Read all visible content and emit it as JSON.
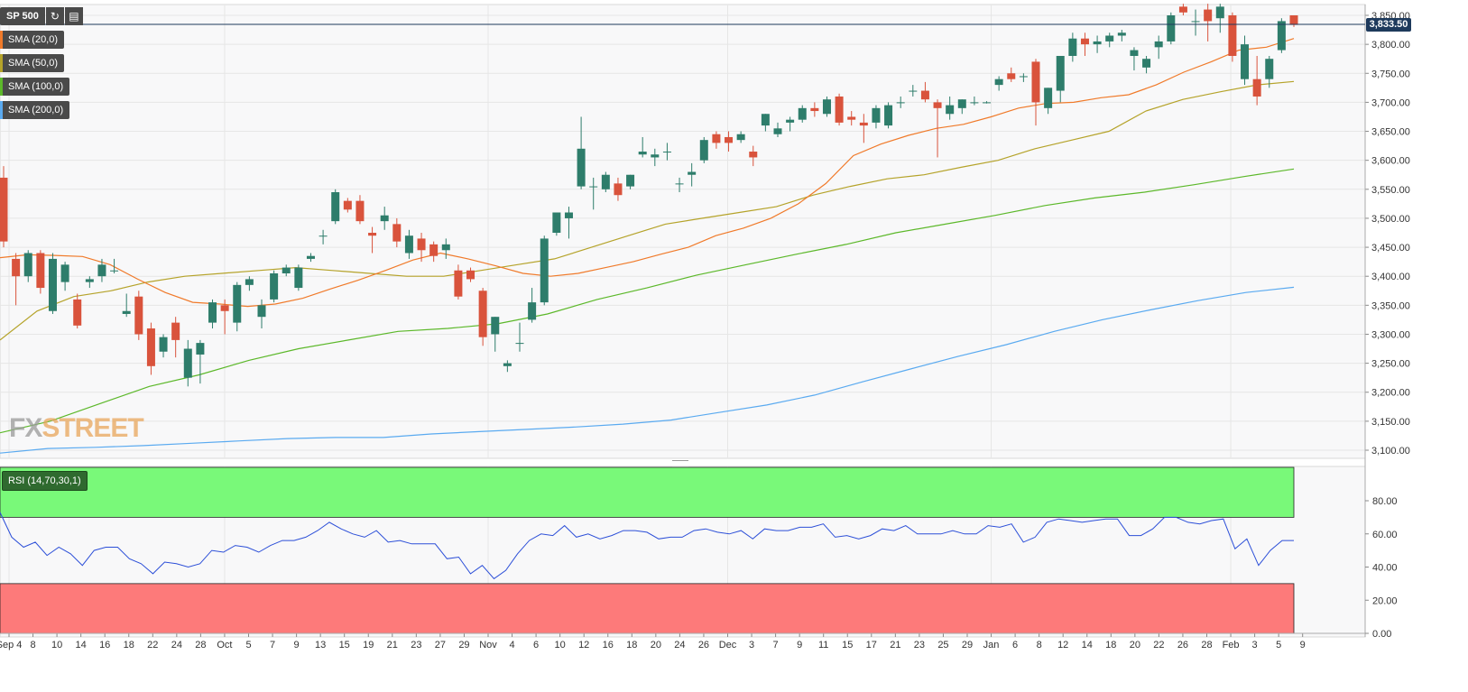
{
  "symbol": "SP 500",
  "header_icons": [
    "refresh-icon",
    "calendar-icon"
  ],
  "indicators": [
    {
      "label": "SMA (20,0)",
      "color": "#f07a2a"
    },
    {
      "label": "SMA (50,0)",
      "color": "#b5a32a"
    },
    {
      "label": "SMA (100,0)",
      "color": "#5cb82a"
    },
    {
      "label": "SMA (200,0)",
      "color": "#5aaaf0"
    }
  ],
  "rsi_label": "RSI (14,70,30,1)",
  "current_price": "3,833.50",
  "logo": {
    "fx": "FX",
    "street": "STREET"
  },
  "colors": {
    "up": "#2e7d6b",
    "down": "#d9533c",
    "rsi_line": "#2c4fd8",
    "overbought_zone": "#79f979",
    "oversold_zone": "#fd7a7a",
    "price_line": "#1e3a5c"
  },
  "chart_data": [
    {
      "type": "candlestick",
      "title": "SP 500",
      "ylim": [
        3080,
        3870
      ],
      "y_ticks": [
        "3,100.00",
        "3,150.00",
        "3,200.00",
        "3,250.00",
        "3,300.00",
        "3,350.00",
        "3,400.00",
        "3,450.00",
        "3,500.00",
        "3,550.00",
        "3,600.00",
        "3,650.00",
        "3,700.00",
        "3,750.00",
        "3,800.00",
        "3,850.00"
      ],
      "x_ticks": [
        "Sep 4",
        "8",
        "10",
        "14",
        "16",
        "18",
        "22",
        "24",
        "28",
        "Oct",
        "5",
        "7",
        "9",
        "13",
        "15",
        "19",
        "21",
        "23",
        "27",
        "29",
        "Nov",
        "4",
        "6",
        "10",
        "12",
        "16",
        "18",
        "20",
        "24",
        "26",
        "Dec",
        "3",
        "7",
        "9",
        "11",
        "15",
        "17",
        "21",
        "23",
        "25",
        "29",
        "Jan",
        "6",
        "8",
        "12",
        "14",
        "18",
        "20",
        "22",
        "26",
        "28",
        "Feb",
        "3",
        "5",
        "9"
      ],
      "candles": [
        {
          "o": 3570,
          "h": 3590,
          "l": 3450,
          "c": 3460
        },
        {
          "o": 3430,
          "h": 3440,
          "l": 3350,
          "c": 3400
        },
        {
          "o": 3400,
          "h": 3445,
          "l": 3390,
          "c": 3440
        },
        {
          "o": 3440,
          "h": 3445,
          "l": 3370,
          "c": 3380
        },
        {
          "o": 3340,
          "h": 3440,
          "l": 3335,
          "c": 3430
        },
        {
          "o": 3390,
          "h": 3425,
          "l": 3375,
          "c": 3420
        },
        {
          "o": 3360,
          "h": 3370,
          "l": 3310,
          "c": 3315
        },
        {
          "o": 3390,
          "h": 3400,
          "l": 3380,
          "c": 3395
        },
        {
          "o": 3400,
          "h": 3430,
          "l": 3390,
          "c": 3420
        },
        {
          "o": 3410,
          "h": 3430,
          "l": 3405,
          "c": 3410
        },
        {
          "o": 3335,
          "h": 3370,
          "l": 3330,
          "c": 3340
        },
        {
          "o": 3365,
          "h": 3375,
          "l": 3290,
          "c": 3300
        },
        {
          "o": 3310,
          "h": 3320,
          "l": 3230,
          "c": 3245
        },
        {
          "o": 3270,
          "h": 3300,
          "l": 3260,
          "c": 3295
        },
        {
          "o": 3320,
          "h": 3330,
          "l": 3260,
          "c": 3290
        },
        {
          "o": 3225,
          "h": 3290,
          "l": 3210,
          "c": 3275
        },
        {
          "o": 3265,
          "h": 3290,
          "l": 3215,
          "c": 3285
        },
        {
          "o": 3320,
          "h": 3360,
          "l": 3310,
          "c": 3355
        },
        {
          "o": 3350,
          "h": 3360,
          "l": 3300,
          "c": 3340
        },
        {
          "o": 3320,
          "h": 3390,
          "l": 3305,
          "c": 3385
        },
        {
          "o": 3385,
          "h": 3400,
          "l": 3375,
          "c": 3395
        },
        {
          "o": 3330,
          "h": 3360,
          "l": 3310,
          "c": 3350
        },
        {
          "o": 3360,
          "h": 3410,
          "l": 3355,
          "c": 3405
        },
        {
          "o": 3405,
          "h": 3420,
          "l": 3400,
          "c": 3415
        },
        {
          "o": 3380,
          "h": 3420,
          "l": 3375,
          "c": 3415
        },
        {
          "o": 3430,
          "h": 3440,
          "l": 3425,
          "c": 3435
        },
        {
          "o": 3470,
          "h": 3480,
          "l": 3455,
          "c": 3470
        },
        {
          "o": 3495,
          "h": 3550,
          "l": 3490,
          "c": 3545
        },
        {
          "o": 3530,
          "h": 3535,
          "l": 3510,
          "c": 3515
        },
        {
          "o": 3530,
          "h": 3540,
          "l": 3490,
          "c": 3495
        },
        {
          "o": 3475,
          "h": 3485,
          "l": 3440,
          "c": 3470
        },
        {
          "o": 3495,
          "h": 3520,
          "l": 3480,
          "c": 3505
        },
        {
          "o": 3490,
          "h": 3500,
          "l": 3450,
          "c": 3460
        },
        {
          "o": 3440,
          "h": 3480,
          "l": 3430,
          "c": 3470
        },
        {
          "o": 3465,
          "h": 3475,
          "l": 3425,
          "c": 3445
        },
        {
          "o": 3455,
          "h": 3460,
          "l": 3425,
          "c": 3435
        },
        {
          "o": 3445,
          "h": 3465,
          "l": 3430,
          "c": 3455
        },
        {
          "o": 3410,
          "h": 3420,
          "l": 3360,
          "c": 3365
        },
        {
          "o": 3410,
          "h": 3415,
          "l": 3390,
          "c": 3395
        },
        {
          "o": 3375,
          "h": 3380,
          "l": 3280,
          "c": 3295
        },
        {
          "o": 3300,
          "h": 3330,
          "l": 3270,
          "c": 3330
        },
        {
          "o": 3245,
          "h": 3255,
          "l": 3235,
          "c": 3250
        },
        {
          "o": 3285,
          "h": 3320,
          "l": 3270,
          "c": 3285
        },
        {
          "o": 3325,
          "h": 3380,
          "l": 3320,
          "c": 3355
        },
        {
          "o": 3355,
          "h": 3470,
          "l": 3350,
          "c": 3465
        },
        {
          "o": 3475,
          "h": 3510,
          "l": 3470,
          "c": 3510
        },
        {
          "o": 3500,
          "h": 3520,
          "l": 3465,
          "c": 3510
        },
        {
          "o": 3555,
          "h": 3675,
          "l": 3550,
          "c": 3620
        },
        {
          "o": 3555,
          "h": 3570,
          "l": 3515,
          "c": 3555
        },
        {
          "o": 3550,
          "h": 3580,
          "l": 3545,
          "c": 3575
        },
        {
          "o": 3560,
          "h": 3570,
          "l": 3530,
          "c": 3540
        },
        {
          "o": 3555,
          "h": 3575,
          "l": 3550,
          "c": 3575
        },
        {
          "o": 3610,
          "h": 3640,
          "l": 3605,
          "c": 3615
        },
        {
          "o": 3605,
          "h": 3620,
          "l": 3590,
          "c": 3610
        },
        {
          "o": 3615,
          "h": 3630,
          "l": 3600,
          "c": 3615
        },
        {
          "o": 3560,
          "h": 3570,
          "l": 3545,
          "c": 3560
        },
        {
          "o": 3575,
          "h": 3595,
          "l": 3555,
          "c": 3580
        },
        {
          "o": 3600,
          "h": 3640,
          "l": 3595,
          "c": 3635
        },
        {
          "o": 3645,
          "h": 3650,
          "l": 3620,
          "c": 3630
        },
        {
          "o": 3640,
          "h": 3650,
          "l": 3615,
          "c": 3630
        },
        {
          "o": 3635,
          "h": 3650,
          "l": 3630,
          "c": 3645
        },
        {
          "o": 3615,
          "h": 3625,
          "l": 3590,
          "c": 3605
        },
        {
          "o": 3660,
          "h": 3680,
          "l": 3650,
          "c": 3680
        },
        {
          "o": 3645,
          "h": 3665,
          "l": 3640,
          "c": 3655
        },
        {
          "o": 3665,
          "h": 3675,
          "l": 3650,
          "c": 3670
        },
        {
          "o": 3670,
          "h": 3695,
          "l": 3665,
          "c": 3690
        },
        {
          "o": 3690,
          "h": 3700,
          "l": 3675,
          "c": 3685
        },
        {
          "o": 3680,
          "h": 3710,
          "l": 3675,
          "c": 3705
        },
        {
          "o": 3710,
          "h": 3715,
          "l": 3660,
          "c": 3665
        },
        {
          "o": 3675,
          "h": 3685,
          "l": 3660,
          "c": 3670
        },
        {
          "o": 3665,
          "h": 3680,
          "l": 3630,
          "c": 3660
        },
        {
          "o": 3665,
          "h": 3695,
          "l": 3655,
          "c": 3690
        },
        {
          "o": 3660,
          "h": 3700,
          "l": 3655,
          "c": 3695
        },
        {
          "o": 3700,
          "h": 3710,
          "l": 3690,
          "c": 3700
        },
        {
          "o": 3720,
          "h": 3730,
          "l": 3710,
          "c": 3720
        },
        {
          "o": 3720,
          "h": 3735,
          "l": 3700,
          "c": 3705
        },
        {
          "o": 3700,
          "h": 3705,
          "l": 3605,
          "c": 3690
        },
        {
          "o": 3680,
          "h": 3710,
          "l": 3670,
          "c": 3695
        },
        {
          "o": 3690,
          "h": 3705,
          "l": 3680,
          "c": 3705
        },
        {
          "o": 3700,
          "h": 3710,
          "l": 3695,
          "c": 3700
        },
        {
          "o": 3700,
          "h": 3702,
          "l": 3698,
          "c": 3700
        },
        {
          "o": 3730,
          "h": 3745,
          "l": 3720,
          "c": 3740
        },
        {
          "o": 3750,
          "h": 3760,
          "l": 3735,
          "c": 3740
        },
        {
          "o": 3745,
          "h": 3750,
          "l": 3735,
          "c": 3745
        },
        {
          "o": 3770,
          "h": 3775,
          "l": 3660,
          "c": 3700
        },
        {
          "o": 3690,
          "h": 3725,
          "l": 3680,
          "c": 3725
        },
        {
          "o": 3720,
          "h": 3780,
          "l": 3700,
          "c": 3780
        },
        {
          "o": 3780,
          "h": 3820,
          "l": 3770,
          "c": 3810
        },
        {
          "o": 3810,
          "h": 3820,
          "l": 3780,
          "c": 3800
        },
        {
          "o": 3800,
          "h": 3815,
          "l": 3785,
          "c": 3805
        },
        {
          "o": 3805,
          "h": 3820,
          "l": 3795,
          "c": 3815
        },
        {
          "o": 3815,
          "h": 3825,
          "l": 3805,
          "c": 3820
        },
        {
          "o": 3780,
          "h": 3795,
          "l": 3755,
          "c": 3790
        },
        {
          "o": 3760,
          "h": 3780,
          "l": 3750,
          "c": 3775
        },
        {
          "o": 3795,
          "h": 3815,
          "l": 3775,
          "c": 3805
        },
        {
          "o": 3805,
          "h": 3855,
          "l": 3800,
          "c": 3850
        },
        {
          "o": 3865,
          "h": 3870,
          "l": 3850,
          "c": 3855
        },
        {
          "o": 3840,
          "h": 3860,
          "l": 3815,
          "c": 3840
        },
        {
          "o": 3860,
          "h": 3870,
          "l": 3805,
          "c": 3840
        },
        {
          "o": 3845,
          "h": 3870,
          "l": 3820,
          "c": 3865
        },
        {
          "o": 3850,
          "h": 3855,
          "l": 3770,
          "c": 3780
        },
        {
          "o": 3740,
          "h": 3815,
          "l": 3730,
          "c": 3800
        },
        {
          "o": 3740,
          "h": 3780,
          "l": 3695,
          "c": 3710
        },
        {
          "o": 3740,
          "h": 3780,
          "l": 3725,
          "c": 3775
        },
        {
          "o": 3790,
          "h": 3845,
          "l": 3785,
          "c": 3840
        },
        {
          "o": 3850,
          "h": 3850,
          "l": 3830,
          "c": 3833.5
        }
      ],
      "sma20": [
        3432,
        3437,
        3436,
        3434,
        3420,
        3395,
        3372,
        3355,
        3352,
        3348,
        3352,
        3362,
        3378,
        3393,
        3410,
        3428,
        3440,
        3430,
        3418,
        3405,
        3400,
        3405,
        3415,
        3425,
        3438,
        3450,
        3470,
        3483,
        3500,
        3525,
        3560,
        3608,
        3628,
        3643,
        3655,
        3662,
        3675,
        3690,
        3698,
        3700,
        3708,
        3713,
        3730,
        3752,
        3770,
        3790,
        3795,
        3810
      ],
      "sma50": [
        3290,
        3340,
        3365,
        3375,
        3390,
        3400,
        3405,
        3410,
        3415,
        3410,
        3405,
        3400,
        3400,
        3410,
        3420,
        3430,
        3450,
        3470,
        3490,
        3500,
        3510,
        3520,
        3540,
        3555,
        3568,
        3575,
        3588,
        3600,
        3620,
        3635,
        3650,
        3685,
        3705,
        3718,
        3730,
        3736
      ],
      "sma100": [
        3130,
        3150,
        3180,
        3210,
        3230,
        3255,
        3275,
        3290,
        3305,
        3310,
        3318,
        3335,
        3360,
        3380,
        3402,
        3420,
        3438,
        3455,
        3475,
        3490,
        3505,
        3522,
        3535,
        3545,
        3558,
        3572,
        3585
      ],
      "sma200": [
        3095,
        3103,
        3105,
        3108,
        3112,
        3116,
        3120,
        3122,
        3122,
        3128,
        3132,
        3136,
        3140,
        3145,
        3152,
        3165,
        3178,
        3195,
        3218,
        3240,
        3262,
        3282,
        3305,
        3325,
        3342,
        3358,
        3372,
        3381
      ],
      "rsi": [
        73,
        58,
        52,
        55,
        47,
        52,
        48,
        41,
        50,
        52,
        52,
        45,
        42,
        36,
        43,
        42,
        40,
        42,
        50,
        49,
        53,
        52,
        49,
        53,
        56,
        56,
        58,
        62,
        67,
        63,
        60,
        58,
        62,
        55,
        56,
        54,
        54,
        54,
        45,
        46,
        36,
        41,
        33,
        38,
        48,
        56,
        60,
        59,
        65,
        58,
        60,
        57,
        59,
        62,
        62,
        61,
        57,
        58,
        58,
        62,
        63,
        61,
        60,
        62,
        57,
        63,
        62,
        62,
        64,
        64,
        66,
        58,
        59,
        57,
        59,
        63,
        62,
        65,
        60,
        60,
        60,
        62,
        60,
        60,
        65,
        64,
        66,
        55,
        58,
        67,
        69,
        68,
        67,
        68,
        69,
        69,
        59,
        59,
        63,
        70,
        70,
        67,
        66,
        68,
        69,
        51,
        57,
        41,
        50,
        56,
        56
      ],
      "rsi_ylim": [
        0,
        100
      ],
      "rsi_ticks": [
        "0.00",
        "20.00",
        "40.00",
        "60.00",
        "80.00"
      ],
      "rsi_zones": {
        "overbought": 70,
        "oversold": 30
      }
    }
  ]
}
